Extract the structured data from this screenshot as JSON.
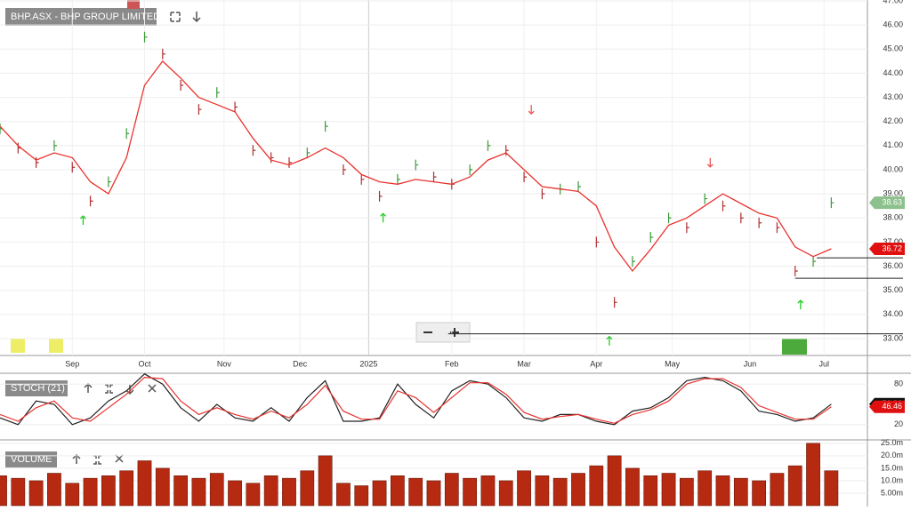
{
  "chart_data": [
    {
      "type": "price",
      "title": "BHP.ASX - BHP GROUP LIMITED",
      "x": [
        0,
        5,
        10,
        15,
        20,
        25,
        30,
        35,
        40,
        45,
        50,
        55,
        60,
        65,
        70,
        75,
        80,
        85,
        90,
        95,
        100,
        105,
        110,
        115,
        120,
        125,
        130,
        135,
        140,
        145,
        150,
        155,
        160,
        165,
        170,
        175,
        180,
        185,
        190,
        195,
        200,
        205,
        210,
        215,
        220,
        225,
        230
      ],
      "xlim": [
        0,
        240
      ],
      "xticks": [
        {
          "value": 20,
          "label": "Sep"
        },
        {
          "value": 40,
          "label": "Oct"
        },
        {
          "value": 62,
          "label": "Nov"
        },
        {
          "value": 83,
          "label": "Dec"
        },
        {
          "value": 102,
          "label": "2025"
        },
        {
          "value": 125,
          "label": "Feb"
        },
        {
          "value": 145,
          "label": "Mar"
        },
        {
          "value": 165,
          "label": "Apr"
        },
        {
          "value": 186,
          "label": "May"
        },
        {
          "value": 207.5,
          "label": "Jun"
        },
        {
          "value": 228,
          "label": "Jul"
        }
      ],
      "ylim": [
        33,
        47
      ],
      "yticks": [
        {
          "value": 33,
          "label": "33.00"
        },
        {
          "value": 34,
          "label": "34.00"
        },
        {
          "value": 35,
          "label": "35.00"
        },
        {
          "value": 36,
          "label": "36.00"
        },
        {
          "value": 37,
          "label": "37.00"
        },
        {
          "value": 38,
          "label": "38.00"
        },
        {
          "value": 39,
          "label": "39.00"
        },
        {
          "value": 40,
          "label": "40.00"
        },
        {
          "value": 41,
          "label": "41.00"
        },
        {
          "value": 42,
          "label": "42.00"
        },
        {
          "value": 43,
          "label": "43.00"
        },
        {
          "value": 44,
          "label": "44.00"
        },
        {
          "value": 45,
          "label": "45.00"
        },
        {
          "value": 46,
          "label": "46.00"
        },
        {
          "value": 47,
          "label": "47.00"
        }
      ],
      "series": [
        {
          "color": "#3a9a3a",
          "down_color": "#b03030",
          "values": [
            41.7,
            40.9,
            40.3,
            41.0,
            40.1,
            38.7,
            39.5,
            41.5,
            45.5,
            44.8,
            43.5,
            42.5,
            43.2,
            42.6,
            40.8,
            40.5,
            40.3,
            40.7,
            41.8,
            40.0,
            39.6,
            38.9,
            39.6,
            40.2,
            39.7,
            39.4,
            40.0,
            41.0,
            40.8,
            39.7,
            39.0,
            39.2,
            39.3,
            37.0,
            34.5,
            36.2,
            37.2,
            38.0,
            37.6,
            38.8,
            38.5,
            38.0,
            37.8,
            37.6,
            35.8,
            36.2,
            38.63
          ]
        },
        {
          "color": "#e8322e",
          "values": [
            41.8,
            41.0,
            40.4,
            40.7,
            40.5,
            39.5,
            39.0,
            40.5,
            43.5,
            44.5,
            43.8,
            43.0,
            42.7,
            42.4,
            41.3,
            40.4,
            40.2,
            40.5,
            40.9,
            40.5,
            39.8,
            39.5,
            39.4,
            39.6,
            39.5,
            39.4,
            39.7,
            40.4,
            40.7,
            40.0,
            39.3,
            39.2,
            39.1,
            38.5,
            36.8,
            35.8,
            36.7,
            37.7,
            38.0,
            38.5,
            39.0,
            38.6,
            38.2,
            38.0,
            36.8,
            36.4,
            36.72
          ]
        }
      ],
      "tags": [
        {
          "value": 38.63,
          "label": "38.63",
          "color": "#8cc08c"
        },
        {
          "value": 36.72,
          "label": "36.72",
          "color": "#e01010"
        }
      ],
      "levels": [
        {
          "value": 36.35,
          "from": 226
        },
        {
          "value": 35.5,
          "from": 220
        },
        {
          "value": 33.2,
          "from": 124
        }
      ],
      "signals": [
        {
          "x": 23,
          "y": 37.9,
          "dir": "up"
        },
        {
          "x": 106,
          "y": 38.0,
          "dir": "up"
        },
        {
          "x": 168.6,
          "y": 32.9,
          "dir": "up"
        },
        {
          "x": 221.5,
          "y": 34.4,
          "dir": "up"
        },
        {
          "x": 147,
          "y": 42.5,
          "dir": "down"
        },
        {
          "x": 196.5,
          "y": 40.3,
          "dir": "down"
        }
      ],
      "grid": true
    },
    {
      "type": "line",
      "title": "STOCH (21)",
      "ylim": [
        0,
        100
      ],
      "yticks": [
        20,
        80
      ],
      "series": [
        {
          "color": "#222",
          "values": [
            30,
            20,
            55,
            50,
            20,
            30,
            55,
            70,
            95,
            80,
            45,
            25,
            50,
            30,
            25,
            45,
            25,
            60,
            85,
            25,
            25,
            30,
            80,
            50,
            30,
            70,
            85,
            80,
            60,
            30,
            25,
            35,
            35,
            25,
            20,
            40,
            45,
            60,
            85,
            90,
            85,
            70,
            40,
            35,
            25,
            30,
            50.3
          ]
        },
        {
          "color": "#e8322e",
          "values": [
            35,
            25,
            45,
            55,
            30,
            25,
            45,
            65,
            90,
            88,
            55,
            35,
            45,
            35,
            28,
            40,
            30,
            50,
            78,
            40,
            28,
            28,
            70,
            60,
            38,
            60,
            82,
            82,
            65,
            38,
            28,
            32,
            35,
            28,
            22,
            35,
            42,
            55,
            80,
            88,
            88,
            75,
            48,
            38,
            28,
            28,
            46.46
          ]
        }
      ],
      "tags": [
        {
          "value": 50.3,
          "label": "50.30",
          "color": "#111"
        },
        {
          "value": 46.46,
          "label": "46.46",
          "color": "#e01010"
        }
      ]
    },
    {
      "type": "bar",
      "title": "VOLUME",
      "color": "#b52a10",
      "ylim": [
        0,
        26
      ],
      "yticks": [
        {
          "value": 5,
          "label": "5.00m"
        },
        {
          "value": 10,
          "label": "10.0m"
        },
        {
          "value": 15,
          "label": "15.0m"
        },
        {
          "value": 20,
          "label": "20.0m"
        },
        {
          "value": 25,
          "label": "25.0m"
        }
      ],
      "values": [
        12,
        11,
        10,
        13,
        9,
        11,
        12,
        14,
        18,
        15,
        12,
        11,
        13,
        10,
        9,
        12,
        11,
        14,
        20,
        9,
        8,
        10,
        12,
        11,
        10,
        13,
        11,
        12,
        10,
        14,
        12,
        11,
        13,
        16,
        20,
        15,
        12,
        13,
        11,
        14,
        12,
        11,
        10,
        13,
        16,
        25,
        14
      ]
    }
  ]
}
